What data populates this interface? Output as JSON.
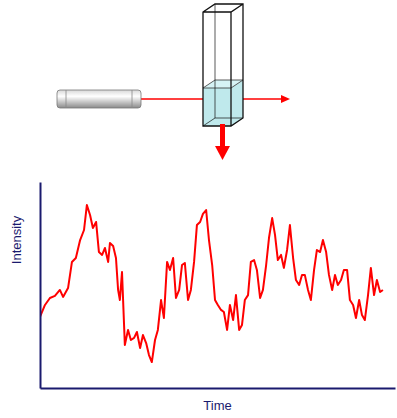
{
  "chart_data": {
    "type": "line",
    "x_label": "Time",
    "y_label": "Intensity",
    "color": "#ff0000",
    "xlim": [
      0,
      100
    ],
    "ylim": [
      0,
      100
    ],
    "tick_labels": false,
    "x": [
      0,
      1.4,
      2.8,
      4.2,
      5.6,
      6.5,
      7.9,
      9.0,
      10.1,
      11.3,
      12.4,
      13.2,
      14.1,
      14.9,
      15.8,
      16.6,
      17.5,
      18.3,
      19.2,
      19.7,
      20.6,
      21.4,
      22.0,
      22.5,
      23.1,
      23.9,
      24.8,
      25.6,
      26.5,
      27.3,
      28.2,
      29.0,
      29.9,
      30.7,
      31.5,
      32.4,
      33.2,
      34.1,
      34.9,
      35.8,
      36.6,
      37.5,
      38.3,
      39.2,
      40.0,
      40.8,
      41.7,
      42.5,
      43.4,
      44.2,
      45.1,
      45.9,
      46.8,
      47.6,
      48.5,
      49.3,
      50.1,
      51.0,
      51.8,
      52.7,
      53.5,
      54.4,
      55.2,
      56.1,
      56.9,
      57.7,
      58.6,
      59.4,
      60.3,
      61.1,
      62.0,
      62.8,
      63.7,
      64.5,
      65.4,
      66.2,
      67.0,
      67.9,
      68.7,
      69.6,
      70.4,
      71.3,
      72.1,
      73.0,
      73.8,
      74.6,
      75.5,
      76.3,
      77.2,
      78.0,
      78.9,
      79.7,
      80.6,
      81.4,
      82.3,
      83.1,
      83.9,
      84.8,
      85.6,
      86.5,
      87.3,
      88.2,
      89.0,
      89.9,
      90.7,
      91.5,
      92.4,
      93.2,
      94.1,
      94.9,
      95.8,
      96.6
    ],
    "values": [
      34.5,
      40.3,
      43.7,
      44.7,
      47.6,
      44.2,
      48.5,
      61.2,
      63.1,
      71.8,
      76.7,
      88.8,
      84.0,
      77.7,
      80.6,
      66.0,
      64.6,
      68.0,
      61.2,
      70.4,
      68.9,
      63.1,
      47.6,
      42.7,
      56.3,
      20.9,
      28.2,
      23.3,
      24.3,
      27.2,
      19.4,
      25.7,
      21.8,
      16.0,
      12.6,
      23.3,
      28.2,
      42.7,
      34.0,
      61.2,
      57.3,
      63.1,
      43.7,
      47.6,
      59.7,
      60.7,
      42.7,
      47.6,
      61.2,
      79.1,
      80.6,
      84.5,
      86.4,
      71.8,
      59.7,
      42.7,
      40.3,
      37.9,
      36.9,
      28.2,
      40.3,
      33.0,
      45.1,
      28.2,
      30.6,
      42.7,
      45.1,
      61.2,
      62.1,
      57.3,
      43.7,
      47.6,
      59.7,
      72.8,
      82.5,
      74.3,
      62.1,
      64.6,
      58.3,
      67.0,
      79.1,
      63.1,
      52.4,
      50.0,
      54.9,
      54.9,
      47.6,
      42.7,
      57.3,
      67.0,
      66.0,
      71.8,
      66.0,
      54.9,
      47.6,
      54.9,
      50.0,
      52.4,
      57.3,
      57.3,
      42.7,
      40.3,
      34.0,
      42.7,
      35.4,
      33.0,
      45.1,
      58.3,
      45.1,
      52.4,
      46.6,
      47.6
    ]
  }
}
